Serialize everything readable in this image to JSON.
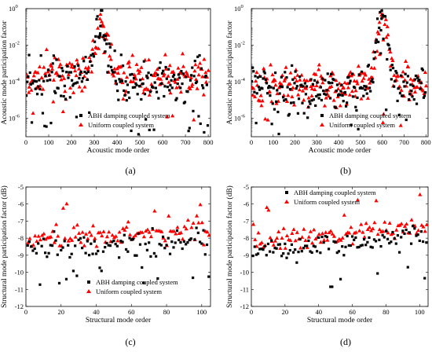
{
  "chart_data": [
    {
      "id": "a",
      "panel_label": "(a)",
      "type": "scatter",
      "xlabel": "Acoustic mode order",
      "ylabel": "Acoustic mode participation factor",
      "xlim": [
        0,
        810
      ],
      "ylim": [
        -7,
        0
      ],
      "yscale": "log",
      "xticks": [
        "0",
        "100",
        "200",
        "300",
        "400",
        "500",
        "600",
        "700",
        "800"
      ],
      "yticks": [
        {
          "label": "10",
          "exp": "0",
          "v": 0
        },
        {
          "label": "10",
          "exp": "-2",
          "v": -2
        },
        {
          "label": "10",
          "exp": "-4",
          "v": -4
        },
        {
          "label": "10",
          "exp": "-6",
          "v": -6
        }
      ],
      "legend": {
        "position": "lower-center",
        "entries": [
          {
            "label": "ABH damping coupled system",
            "marker": "square",
            "color": "#000000"
          },
          {
            "label": "Uniform coupled system",
            "marker": "triangle",
            "color": "#ff0000"
          }
        ]
      },
      "gen": {
        "kind": "acoustic",
        "n": 200,
        "peaks": [
          [
            330,
            -0.8
          ],
          [
            325,
            -1.3
          ],
          [
            345,
            -2.2
          ]
        ],
        "base": -3.9,
        "spread": 1.2,
        "seed": 11
      }
    },
    {
      "id": "b",
      "panel_label": "(b)",
      "type": "scatter",
      "xlabel": "Acoustic mode order",
      "ylabel": "Acoustic mode participation factor",
      "xlim": [
        0,
        810
      ],
      "ylim": [
        -7,
        0
      ],
      "yscale": "log",
      "xticks": [
        "0",
        "100",
        "200",
        "300",
        "400",
        "500",
        "600",
        "700",
        "800"
      ],
      "yticks": [
        {
          "label": "10",
          "exp": "0",
          "v": 0
        },
        {
          "label": "10",
          "exp": "-2",
          "v": -2
        },
        {
          "label": "10",
          "exp": "-4",
          "v": -4
        },
        {
          "label": "10",
          "exp": "-6",
          "v": -6
        }
      ],
      "legend": {
        "position": "lower-right",
        "entries": [
          {
            "label": "ABH damping coupled system",
            "marker": "square",
            "color": "#000000"
          },
          {
            "label": "Uniform coupled system",
            "marker": "triangle",
            "color": "#ff0000"
          }
        ]
      },
      "gen": {
        "kind": "acoustic",
        "n": 200,
        "peaks": [
          [
            600,
            -0.4
          ],
          [
            605,
            -1.5
          ],
          [
            590,
            -2.3
          ]
        ],
        "base": -4.3,
        "spread": 1.1,
        "seed": 29
      }
    },
    {
      "id": "c",
      "panel_label": "(c)",
      "type": "scatter",
      "xlabel": "Structural mode order",
      "ylabel": "Structural mode participation factor (dB)",
      "xlim": [
        0,
        105
      ],
      "ylim": [
        -12,
        -5
      ],
      "xticks": [
        "0",
        "20",
        "40",
        "60",
        "80",
        "100"
      ],
      "yticks": [
        {
          "label": "-5",
          "v": -5
        },
        {
          "label": "-6",
          "v": -6
        },
        {
          "label": "-7",
          "v": -7
        },
        {
          "label": "-8",
          "v": -8
        },
        {
          "label": "-9",
          "v": -9
        },
        {
          "label": "-10",
          "v": -10
        },
        {
          "label": "-11",
          "v": -11
        },
        {
          "label": "-12",
          "v": -12
        }
      ],
      "legend": {
        "position": "lower-center",
        "entries": [
          {
            "label": "ABH damping coupled system",
            "marker": "square",
            "color": "#000000"
          },
          {
            "label": "Uniform coupled system",
            "marker": "triangle",
            "color": "#ff0000"
          }
        ]
      },
      "gen": {
        "kind": "structural",
        "n": 104,
        "base": -8.3,
        "rise": 0.6,
        "spread": 0.6,
        "seed": 7
      }
    },
    {
      "id": "d",
      "panel_label": "(d)",
      "type": "scatter",
      "xlabel": "Structural mode order",
      "ylabel": "Structural mode participation factor (dB)",
      "xlim": [
        0,
        105
      ],
      "ylim": [
        -12,
        -5
      ],
      "xticks": [
        "0",
        "20",
        "40",
        "60",
        "80",
        "100"
      ],
      "yticks": [
        {
          "label": "-5",
          "v": -5
        },
        {
          "label": "-6",
          "v": -6
        },
        {
          "label": "-7",
          "v": -7
        },
        {
          "label": "-8",
          "v": -8
        },
        {
          "label": "-9",
          "v": -9
        },
        {
          "label": "-10",
          "v": -10
        },
        {
          "label": "-11",
          "v": -11
        },
        {
          "label": "-12",
          "v": -12
        }
      ],
      "legend": {
        "position": "top-center",
        "entries": [
          {
            "label": "ABH damping coupled system",
            "marker": "square",
            "color": "#000000"
          },
          {
            "label": "Uniform coupled system",
            "marker": "triangle",
            "color": "#ff0000"
          }
        ]
      },
      "gen": {
        "kind": "structural",
        "n": 104,
        "base": -8.4,
        "rise": 0.9,
        "spread": 0.5,
        "seed": 19
      }
    }
  ]
}
